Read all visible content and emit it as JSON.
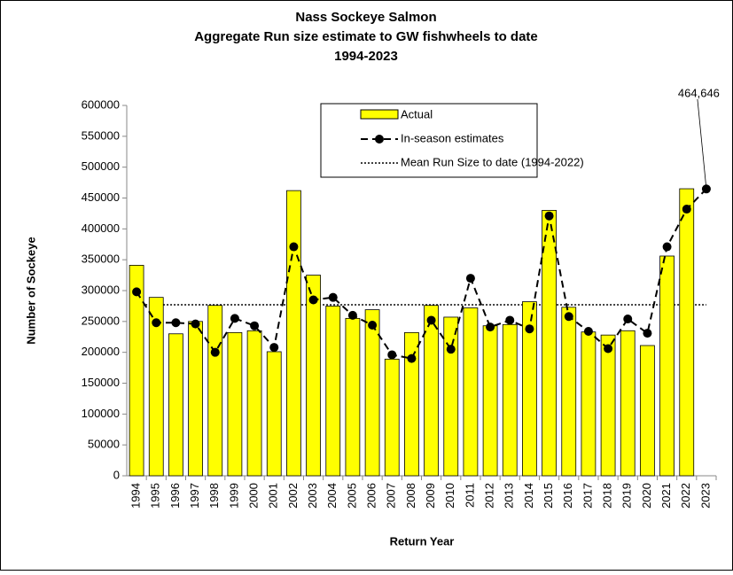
{
  "chart_data": {
    "type": "bar_line",
    "title": [
      "Nass Sockeye Salmon",
      "Aggregate Run size estimate to GW fishwheels to date",
      "1994-2023"
    ],
    "x_label": "Return Year",
    "y_label": "Number of Sockeye",
    "categories": [
      "1994",
      "1995",
      "1996",
      "1997",
      "1998",
      "1999",
      "2000",
      "2001",
      "2002",
      "2003",
      "2004",
      "2005",
      "2006",
      "2007",
      "2008",
      "2009",
      "2010",
      "2011",
      "2012",
      "2013",
      "2014",
      "2015",
      "2016",
      "2017",
      "2018",
      "2019",
      "2020",
      "2021",
      "2022",
      "2023"
    ],
    "series": [
      {
        "name": "Actual",
        "kind": "bar",
        "color": "#ffff00",
        "values": [
          341000,
          289000,
          230000,
          250000,
          276000,
          232000,
          235000,
          201000,
          462000,
          325000,
          275000,
          255000,
          269000,
          189000,
          232000,
          276000,
          257000,
          272000,
          243000,
          245000,
          282000,
          430000,
          273000,
          233000,
          228000,
          235000,
          211000,
          356000,
          465000,
          null
        ]
      },
      {
        "name": "In-season estimates",
        "kind": "line",
        "color": "#000000",
        "values": [
          298000,
          248000,
          248000,
          246000,
          200000,
          255000,
          243000,
          208000,
          371000,
          285000,
          289000,
          260000,
          244000,
          196000,
          190000,
          252000,
          205000,
          320000,
          241000,
          252000,
          238000,
          421000,
          258000,
          234000,
          206000,
          254000,
          231000,
          371000,
          432000,
          464646
        ],
        "value_labels": [
          null,
          null,
          null,
          null,
          null,
          null,
          null,
          null,
          null,
          null,
          null,
          null,
          null,
          null,
          null,
          null,
          null,
          null,
          null,
          null,
          null,
          null,
          null,
          null,
          null,
          null,
          null,
          null,
          null,
          "464,646"
        ]
      }
    ],
    "reference_line": {
      "name": "Mean Run Size to date (1994-2022)",
      "value": 277000
    },
    "ylim": [
      0,
      600000
    ],
    "yticks": [
      0,
      50000,
      100000,
      150000,
      200000,
      250000,
      300000,
      350000,
      400000,
      450000,
      500000,
      550000,
      600000
    ],
    "legend": "top-center",
    "grid": false
  }
}
